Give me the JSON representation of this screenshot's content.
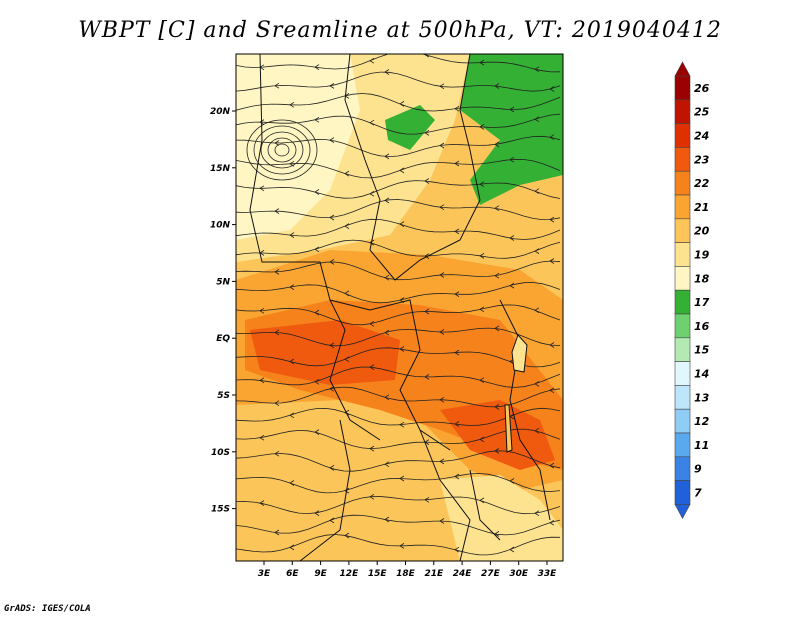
{
  "title": "WBPT [C] and Sreamline at 500hPa, VT: 2019040412",
  "footer": "GrADS: IGES/COLA",
  "map": {
    "lat_ticks": [
      "20N",
      "15N",
      "10N",
      "5N",
      "EQ",
      "5S",
      "10S",
      "15S"
    ],
    "lon_ticks": [
      "3E",
      "6E",
      "9E",
      "12E",
      "15E",
      "18E",
      "21E",
      "24E",
      "27E",
      "30E",
      "33E"
    ]
  },
  "colorbar": {
    "labels": [
      "26",
      "25",
      "24",
      "23",
      "22",
      "21",
      "20",
      "19",
      "18",
      "17",
      "16",
      "15",
      "14",
      "13",
      "12",
      "11",
      "9",
      "7"
    ],
    "colors": [
      "#9b0000",
      "#c11400",
      "#e03000",
      "#f05a0f",
      "#f6821c",
      "#faa532",
      "#fbc55a",
      "#fde390",
      "#fff6c3",
      "#34b034",
      "#6fd070",
      "#b2eab2",
      "#e0f8fd",
      "#bde6fb",
      "#8fcdf7",
      "#5aa9ef",
      "#3a83e5",
      "#2060d8"
    ]
  }
}
